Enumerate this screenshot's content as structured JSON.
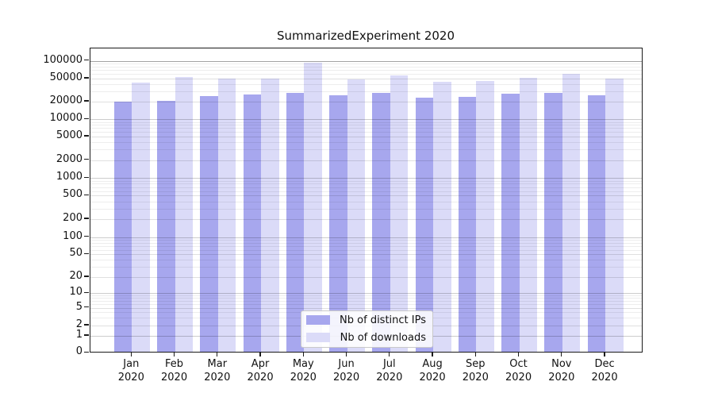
{
  "title": "SummarizedExperiment 2020",
  "chart_data": {
    "type": "bar",
    "title": "SummarizedExperiment 2020",
    "categories": [
      "Jan",
      "Feb",
      "Mar",
      "Apr",
      "May",
      "Jun",
      "Jul",
      "Aug",
      "Sep",
      "Oct",
      "Nov",
      "Dec"
    ],
    "year_label": "2020",
    "series": [
      {
        "name": "Nb of distinct IPs",
        "color": "#a7a7ee",
        "values": [
          19900,
          20600,
          24800,
          26900,
          28500,
          25800,
          28300,
          23700,
          24500,
          27700,
          28500,
          25600
        ]
      },
      {
        "name": "Nb of downloads",
        "color": "#dbdbf8",
        "values": [
          42300,
          53200,
          49500,
          50000,
          94500,
          47600,
          56100,
          44500,
          45900,
          52100,
          59700,
          49500
        ]
      }
    ],
    "xlabel": "",
    "ylabel": "",
    "y_scale": "symlog",
    "y_ticks": [
      0,
      1,
      2,
      5,
      10,
      20,
      50,
      100,
      200,
      500,
      1000,
      2000,
      5000,
      10000,
      20000,
      50000,
      100000
    ],
    "ylim": [
      0,
      130000
    ],
    "grid": true,
    "legend_position": "lower center"
  }
}
